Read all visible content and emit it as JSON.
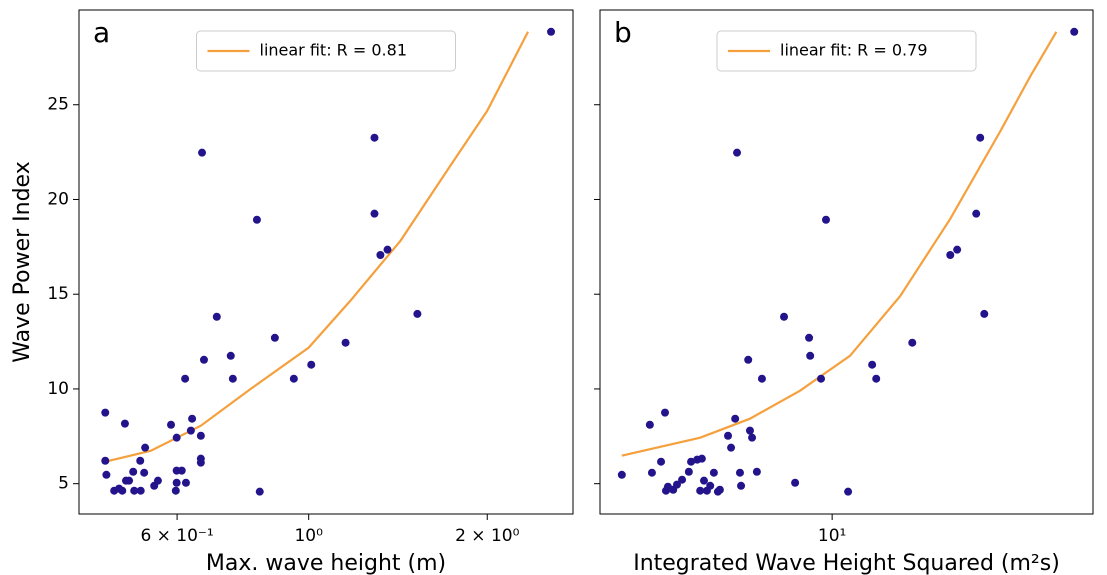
{
  "chart_data": [
    {
      "type": "scatter",
      "panel_label": "a",
      "xlabel": "Max. wave height (m)",
      "ylabel": "Wave Power Index",
      "xscale": "log",
      "xlim": [
        0.41,
        2.79
      ],
      "ylim": [
        3.4,
        30.0
      ],
      "xticks": [
        {
          "value": 0.6,
          "label": "6 × 10⁻¹"
        },
        {
          "value": 1,
          "label": "10⁰"
        },
        {
          "value": 2,
          "label": "2 × 10⁰"
        }
      ],
      "yticks": [
        5,
        10,
        15,
        20,
        25
      ],
      "ytick_labels": true,
      "legend": "upper center",
      "series": [
        {
          "name": "linear fit: R = 0.81",
          "color": "#f5a03c",
          "kind": "line",
          "x": [
            0.454,
            0.542,
            0.658,
            0.799,
            1.0,
            1.176,
            1.428,
            1.733,
            2.0,
            2.343
          ],
          "values": [
            6.16,
            6.74,
            8.06,
            10.01,
            12.18,
            14.66,
            17.82,
            21.78,
            24.68,
            28.85
          ]
        },
        {
          "color": "#23148c",
          "kind": "points",
          "x": [
            0.454,
            0.454,
            0.456,
            0.47,
            0.479,
            0.485,
            0.49,
            0.492,
            0.498,
            0.506,
            0.508,
            0.52,
            0.521,
            0.528,
            0.53,
            0.549,
            0.557,
            0.586,
            0.597,
            0.599,
            0.599,
            0.599,
            0.611,
            0.619,
            0.621,
            0.633,
            0.636,
            0.658,
            0.658,
            0.658,
            0.661,
            0.666,
            0.7,
            0.739,
            0.745,
            0.818,
            0.827,
            0.877,
            0.944,
            1.01,
            1.154,
            1.291,
            1.291,
            1.321,
            1.358,
            1.525,
            2.562
          ],
          "values": [
            8.75,
            6.21,
            5.47,
            4.63,
            4.74,
            4.63,
            8.17,
            5.16,
            5.16,
            5.63,
            4.63,
            6.21,
            4.63,
            5.58,
            6.9,
            4.89,
            5.16,
            8.11,
            4.63,
            7.43,
            5.69,
            5.05,
            5.69,
            10.54,
            5.05,
            7.8,
            8.43,
            7.53,
            6.32,
            6.11,
            22.47,
            11.54,
            13.81,
            11.75,
            10.54,
            18.93,
            4.58,
            12.7,
            10.54,
            11.28,
            12.44,
            19.25,
            23.26,
            17.07,
            17.35,
            13.96,
            28.85
          ]
        }
      ]
    },
    {
      "type": "scatter",
      "panel_label": "b",
      "xlabel": "Integrated Wave Height Squared (m²s)",
      "xscale": "log",
      "xlim": [
        4.0,
        28.0
      ],
      "ylim": [
        3.4,
        30.0
      ],
      "xticks": [
        {
          "value": 10,
          "label": "10¹"
        }
      ],
      "yticks": [
        5,
        10,
        15,
        20,
        25
      ],
      "ytick_labels": false,
      "legend": "upper center",
      "series": [
        {
          "name": "linear fit: R = 0.79",
          "color": "#f5a03c",
          "kind": "line",
          "x": [
            4.36,
            5.94,
            7.23,
            8.81,
            10.73,
            13.08,
            15.94,
            19.42,
            21.86,
            24.23
          ],
          "values": [
            6.48,
            7.43,
            8.43,
            9.91,
            11.75,
            14.9,
            18.98,
            23.6,
            26.5,
            28.85
          ]
        },
        {
          "color": "#23148c",
          "kind": "points",
          "x": [
            4.36,
            4.87,
            4.91,
            5.09,
            5.17,
            5.19,
            5.23,
            5.34,
            5.42,
            5.53,
            5.68,
            5.73,
            5.87,
            5.94,
            5.98,
            6.03,
            6.1,
            6.18,
            6.27,
            6.37,
            6.42,
            6.63,
            6.71,
            6.82,
            6.87,
            6.95,
            6.98,
            7.18,
            7.23,
            7.29,
            7.43,
            7.58,
            8.27,
            8.64,
            9.13,
            9.17,
            9.57,
            9.76,
            10.65,
            11.71,
            11.9,
            13.72,
            15.94,
            16.38,
            17.66,
            17.94,
            18.23,
            26.0
          ],
          "values": [
            5.47,
            8.11,
            5.58,
            6.16,
            8.75,
            4.63,
            4.84,
            4.68,
            4.95,
            5.21,
            5.63,
            6.16,
            6.27,
            4.63,
            6.32,
            5.16,
            4.63,
            4.89,
            5.58,
            4.58,
            4.68,
            7.53,
            6.9,
            8.43,
            22.47,
            5.58,
            4.89,
            11.54,
            7.8,
            7.43,
            5.63,
            10.54,
            13.81,
            5.05,
            12.7,
            11.75,
            10.54,
            18.93,
            4.58,
            11.28,
            10.54,
            12.44,
            17.07,
            17.35,
            19.25,
            23.26,
            13.96,
            28.85
          ]
        }
      ]
    }
  ]
}
